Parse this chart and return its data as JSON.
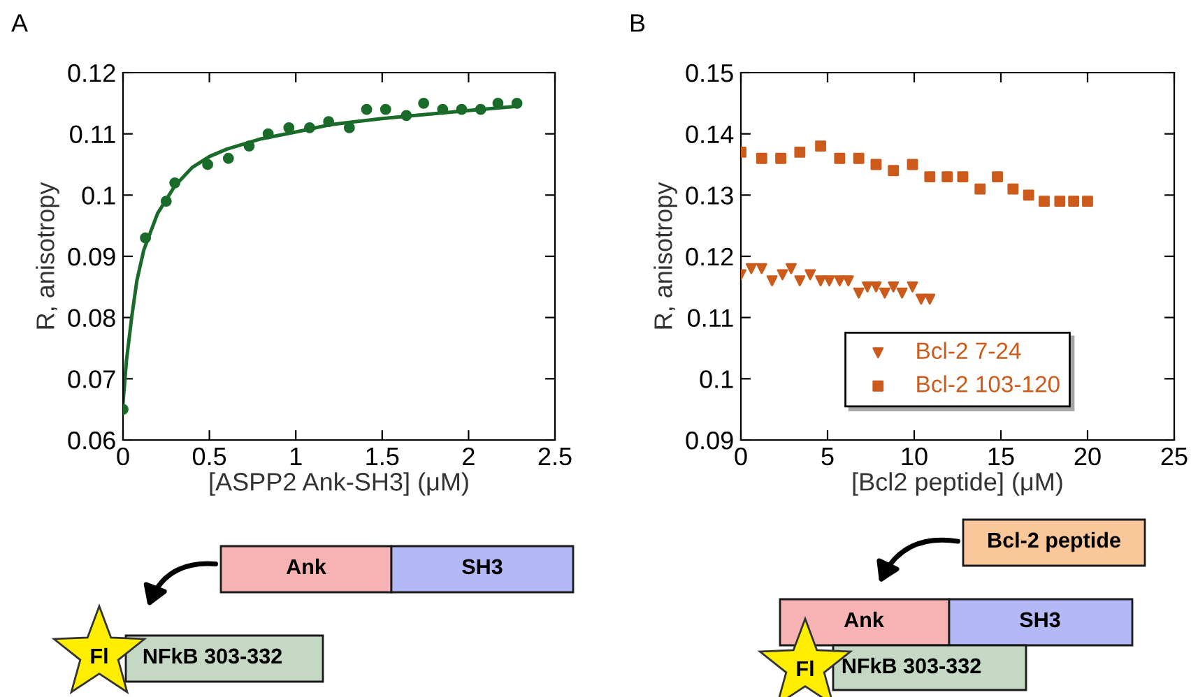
{
  "chart_data": [
    {
      "type": "scatter",
      "title": "A",
      "xlabel": "[ASPP2 Ank-SH3] (μM)",
      "ylabel": "R, anisotropy",
      "xlim": [
        0,
        2.5
      ],
      "xticks": [
        0,
        0.5,
        1,
        1.5,
        2,
        2.5
      ],
      "ylim": [
        0.06,
        0.12
      ],
      "yticks": [
        0.06,
        0.07,
        0.08,
        0.09,
        0.1,
        0.11,
        0.12
      ],
      "grid": false,
      "legend": false,
      "annotations": [
        "Ank",
        "SH3",
        "Fl",
        "NFkB 303-332"
      ],
      "series": [
        {
          "type": "scatter",
          "marker": "circle",
          "color": "#1a6b2a",
          "x": [
            0,
            0.13,
            0.25,
            0.3,
            0.49,
            0.61,
            0.73,
            0.84,
            0.96,
            1.08,
            1.19,
            1.31,
            1.41,
            1.52,
            1.64,
            1.74,
            1.85,
            1.96,
            2.07,
            2.17,
            2.28
          ],
          "values": [
            0.065,
            0.093,
            0.099,
            0.102,
            0.105,
            0.106,
            0.108,
            0.11,
            0.111,
            0.111,
            0.112,
            0.111,
            0.114,
            0.114,
            0.113,
            0.115,
            0.114,
            0.114,
            0.114,
            0.115,
            0.115
          ]
        },
        {
          "type": "line",
          "marker": "none",
          "color": "#1a6b2a",
          "x": [
            0,
            0.02,
            0.05,
            0.08,
            0.12,
            0.2,
            0.3,
            0.4,
            0.5,
            0.6,
            0.8,
            1.0,
            1.2,
            1.5,
            1.8,
            2.0,
            2.28
          ],
          "values": [
            0.066,
            0.073,
            0.08,
            0.086,
            0.091,
            0.097,
            0.1015,
            0.1045,
            0.1063,
            0.1075,
            0.1092,
            0.1103,
            0.1115,
            0.1125,
            0.1133,
            0.1138,
            0.1145
          ]
        }
      ]
    },
    {
      "type": "scatter",
      "title": "B",
      "xlabel": "[Bcl2 peptide] (μM)",
      "ylabel": "R, anisotropy",
      "xlim": [
        0,
        25
      ],
      "xticks": [
        0,
        5,
        10,
        15,
        20,
        25
      ],
      "ylim": [
        0.09,
        0.15
      ],
      "yticks": [
        0.09,
        0.1,
        0.11,
        0.12,
        0.13,
        0.14,
        0.15
      ],
      "grid": false,
      "legend": "bottom",
      "annotations": [
        "Bcl-2 peptide",
        "Ank",
        "SH3",
        "Fl",
        "NFkB 303-332"
      ],
      "series": [
        {
          "name": "Bcl-2 7-24",
          "type": "scatter",
          "marker": "triangle",
          "color": "#cc5a1a",
          "x": [
            0,
            0.6,
            1.2,
            1.8,
            2.4,
            2.9,
            3.4,
            4.0,
            4.6,
            5.1,
            5.7,
            6.2,
            6.8,
            7.3,
            7.8,
            8.3,
            8.8,
            9.3,
            9.9,
            10.4,
            10.9
          ],
          "values": [
            0.117,
            0.118,
            0.118,
            0.116,
            0.117,
            0.118,
            0.116,
            0.117,
            0.116,
            0.116,
            0.116,
            0.116,
            0.114,
            0.115,
            0.115,
            0.114,
            0.115,
            0.114,
            0.115,
            0.113,
            0.113
          ]
        },
        {
          "name": "Bcl-2 103-120",
          "type": "scatter",
          "marker": "square",
          "color": "#cc5a1a",
          "x": [
            0,
            1.2,
            2.3,
            3.4,
            4.6,
            5.7,
            6.8,
            7.8,
            8.8,
            9.9,
            10.9,
            11.9,
            12.8,
            13.8,
            14.8,
            15.7,
            16.6,
            17.5,
            18.4,
            19.2,
            20.0
          ],
          "values": [
            0.137,
            0.136,
            0.136,
            0.137,
            0.138,
            0.136,
            0.136,
            0.135,
            0.134,
            0.135,
            0.133,
            0.133,
            0.133,
            0.131,
            0.133,
            0.131,
            0.13,
            0.129,
            0.129,
            0.129,
            0.129
          ]
        }
      ]
    }
  ]
}
